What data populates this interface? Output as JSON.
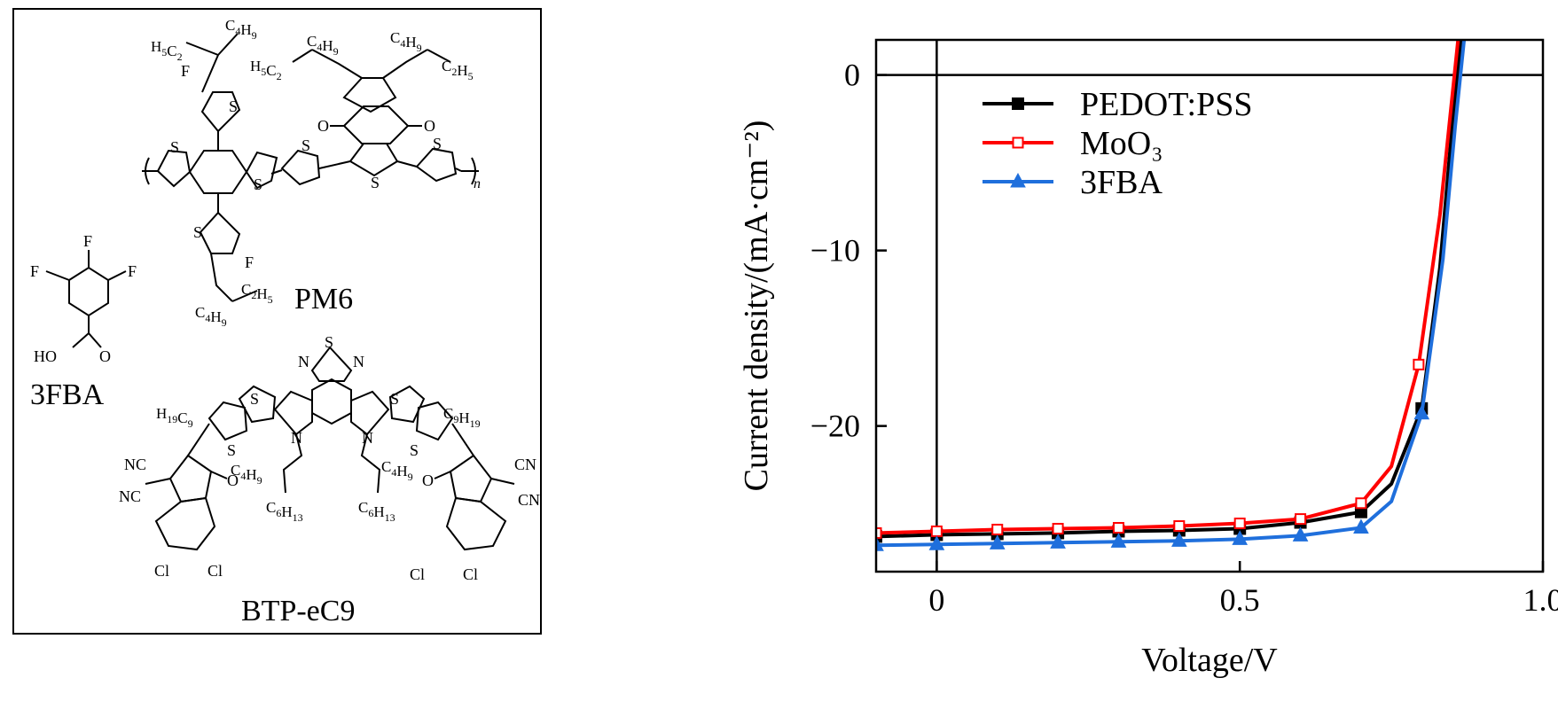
{
  "structures": {
    "labels": {
      "pm6": "PM6",
      "fba": "3FBA",
      "btp": "BTP-eC9"
    },
    "atoms": {
      "S": "S",
      "F": "F",
      "O": "O",
      "N": "N",
      "HO": "HO",
      "CN": "CN",
      "NC": "NC",
      "Cl": "Cl",
      "n": "n"
    },
    "chains": {
      "c4h9": "C4H9",
      "c2h5": "C2H5",
      "h5c2": "H5C2",
      "c6h13": "C6H13",
      "c9h19": "C9H19",
      "h19c9": "H19C9"
    }
  },
  "chart_data": {
    "type": "line",
    "xlabel": "Voltage/V",
    "ylabel": "Current density/(mA·cm⁻²)",
    "xlim": [
      -0.1,
      1.0
    ],
    "ylim": [
      -28.3,
      2.0
    ],
    "xticks": [
      0,
      0.5,
      1.0
    ],
    "xtick_labels": [
      "0",
      "0.5",
      "1.0"
    ],
    "yticks": [
      0,
      -10,
      -20
    ],
    "ytick_labels": [
      "0",
      "−10",
      "−20"
    ],
    "grid": false,
    "reference_lines": {
      "x": 0,
      "y": 0
    },
    "legend_position": "top-left",
    "series": [
      {
        "name": "PEDOT:PSS",
        "color": "#000000",
        "marker": "filled-square",
        "points": [
          [
            -0.1,
            -26.3
          ],
          [
            0,
            -26.2
          ],
          [
            0.1,
            -26.15
          ],
          [
            0.2,
            -26.1
          ],
          [
            0.3,
            -26.0
          ],
          [
            0.4,
            -25.95
          ],
          [
            0.5,
            -25.85
          ],
          [
            0.6,
            -25.5
          ],
          [
            0.7,
            -24.9
          ],
          [
            0.75,
            -23.3
          ],
          [
            0.8,
            -19.0
          ],
          [
            0.83,
            -11.0
          ],
          [
            0.85,
            -3.0
          ],
          [
            0.865,
            2.0
          ]
        ],
        "marker_x": [
          -0.1,
          0,
          0.1,
          0.2,
          0.3,
          0.4,
          0.5,
          0.6,
          0.7,
          0.8
        ]
      },
      {
        "name": "MoO₃",
        "color": "#ff0000",
        "marker": "open-square",
        "points": [
          [
            -0.1,
            -26.1
          ],
          [
            0,
            -26.0
          ],
          [
            0.1,
            -25.9
          ],
          [
            0.2,
            -25.85
          ],
          [
            0.3,
            -25.8
          ],
          [
            0.4,
            -25.7
          ],
          [
            0.5,
            -25.55
          ],
          [
            0.6,
            -25.3
          ],
          [
            0.7,
            -24.4
          ],
          [
            0.75,
            -22.3
          ],
          [
            0.795,
            -16.5
          ],
          [
            0.83,
            -8.0
          ],
          [
            0.848,
            -2.0
          ],
          [
            0.86,
            2.0
          ]
        ],
        "marker_x": [
          -0.1,
          0,
          0.1,
          0.2,
          0.3,
          0.4,
          0.5,
          0.6,
          0.7,
          0.795
        ]
      },
      {
        "name": "3FBA",
        "color": "#1f6fdc",
        "marker": "filled-triangle",
        "points": [
          [
            -0.1,
            -26.8
          ],
          [
            0,
            -26.75
          ],
          [
            0.1,
            -26.7
          ],
          [
            0.2,
            -26.65
          ],
          [
            0.3,
            -26.6
          ],
          [
            0.4,
            -26.55
          ],
          [
            0.5,
            -26.45
          ],
          [
            0.6,
            -26.25
          ],
          [
            0.7,
            -25.8
          ],
          [
            0.75,
            -24.3
          ],
          [
            0.8,
            -19.3
          ],
          [
            0.835,
            -10.5
          ],
          [
            0.855,
            -3.0
          ],
          [
            0.87,
            2.0
          ]
        ],
        "marker_x": [
          -0.1,
          0,
          0.1,
          0.2,
          0.3,
          0.4,
          0.5,
          0.6,
          0.7,
          0.8
        ]
      }
    ]
  }
}
